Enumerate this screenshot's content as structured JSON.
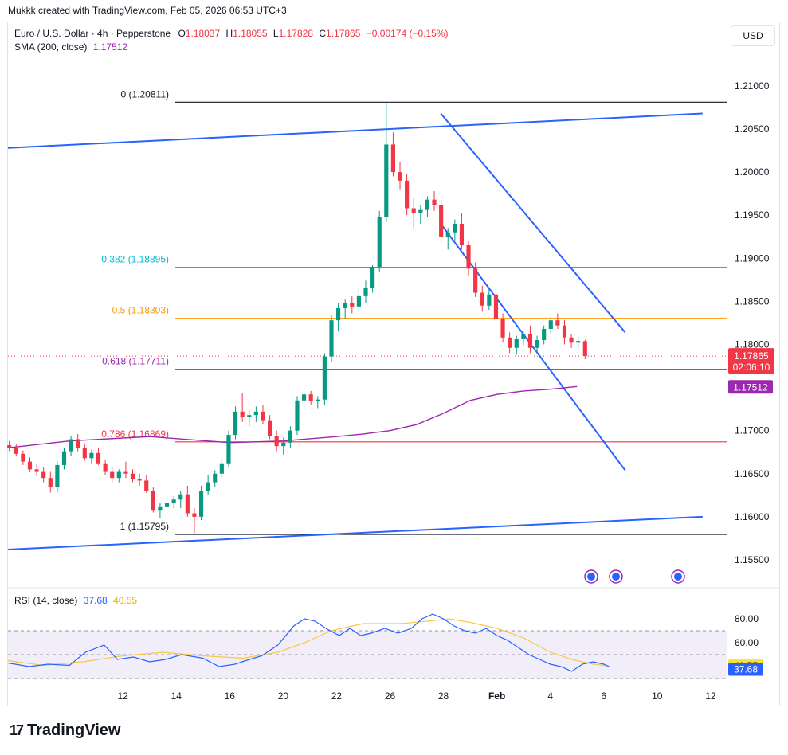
{
  "credit": "Mukkk created with TradingView.com, Feb 05, 2026 06:53 UTC+3",
  "legend": {
    "symbol": "Euro / U.S. Dollar · 4h · Pepperstone",
    "o_label": "O",
    "o": "1.18037",
    "h_label": "H",
    "h": "1.18055",
    "l_label": "L",
    "l": "1.17828",
    "c_label": "C",
    "c": "1.17865",
    "change": "−0.00174 (−0.15%)",
    "sma_label": "SMA (200, close)",
    "sma_value": "1.17512"
  },
  "currency_button": "USD",
  "rsi_legend": {
    "label": "RSI (14, close)",
    "v1": "37.68",
    "v2": "40.55"
  },
  "brand": {
    "logo": "17",
    "name": "TradingView"
  },
  "colors": {
    "up": "#089981",
    "down": "#f23645",
    "channel": "#2962ff",
    "sma": "#9c27b0",
    "rsi": "#2962ff",
    "rsi_ma": "#f7c948"
  },
  "chart_data": {
    "type": "candlestick",
    "price_axis": {
      "ticks": [
        1.21,
        1.205,
        1.2,
        1.195,
        1.19,
        1.185,
        1.18,
        1.175,
        1.17,
        1.165,
        1.16,
        1.155
      ],
      "tick_labels": [
        "1.21000",
        "1.20500",
        "1.20000",
        "1.19500",
        "1.19000",
        "1.18500",
        "1.18000",
        "1.17500",
        "1.17000",
        "1.16500",
        "1.16000",
        "1.15500"
      ],
      "range": [
        1.1525,
        1.2135
      ]
    },
    "x_axis": {
      "labels": [
        "12",
        "14",
        "16",
        "20",
        "22",
        "26",
        "28",
        "Feb",
        "4",
        "6",
        "10",
        "12"
      ],
      "label_days": [
        12,
        14,
        16,
        18,
        20,
        22,
        24,
        26,
        28,
        30,
        32,
        34
      ]
    },
    "price_badges": {
      "last": "1.17865",
      "countdown": "02:06:10",
      "sma": "1.17512",
      "last_price": 1.17865,
      "sma_price": 1.17512
    },
    "fibonacci": [
      {
        "label": "0 (1.20811)",
        "price": 1.20811,
        "color": "#131722"
      },
      {
        "label": "0.382 (1.18895)",
        "price": 1.18895,
        "color": "#00bcd4"
      },
      {
        "label": "0.5 (1.18303)",
        "price": 1.18303,
        "color": "#ff9800"
      },
      {
        "label": "0.618 (1.17711)",
        "price": 1.17711,
        "color": "#9c27b0"
      },
      {
        "label": "0.786 (1.16869)",
        "price": 1.16869,
        "color": "#f23645"
      },
      {
        "label": "1 (1.15795)",
        "price": 1.15795,
        "color": "#131722"
      }
    ],
    "channel_lines": [
      {
        "d1": 7.7,
        "p1": 1.2028,
        "d2": 33.7,
        "p2": 1.2068
      },
      {
        "d1": 7.7,
        "p1": 1.1562,
        "d2": 33.7,
        "p2": 1.16
      },
      {
        "d1": 23.9,
        "p1": 1.2068,
        "d2": 30.8,
        "p2": 1.1814
      },
      {
        "d1": 23.9,
        "p1": 1.194,
        "d2": 30.8,
        "p2": 1.1654
      }
    ],
    "sma_series": [
      [
        7.7,
        1.168
      ],
      [
        10,
        1.1688
      ],
      [
        13,
        1.1693
      ],
      [
        16,
        1.1686
      ],
      [
        18,
        1.1688
      ],
      [
        20,
        1.1693
      ],
      [
        21,
        1.1696
      ],
      [
        22,
        1.17
      ],
      [
        23,
        1.1707
      ],
      [
        24,
        1.172
      ],
      [
        25,
        1.1735
      ],
      [
        26,
        1.1742
      ],
      [
        27,
        1.1746
      ],
      [
        28,
        1.1748
      ],
      [
        29,
        1.17512
      ]
    ],
    "candles": [
      [
        1.1683,
        1.1688,
        1.1676,
        1.168
      ],
      [
        1.168,
        1.1684,
        1.167,
        1.1673
      ],
      [
        1.1673,
        1.1677,
        1.166,
        1.1664
      ],
      [
        1.1664,
        1.1669,
        1.1652,
        1.1655
      ],
      [
        1.1655,
        1.1662,
        1.1648,
        1.1652
      ],
      [
        1.1652,
        1.1657,
        1.164,
        1.1645
      ],
      [
        1.1645,
        1.1652,
        1.1628,
        1.1634
      ],
      [
        1.1634,
        1.1664,
        1.1628,
        1.166
      ],
      [
        1.166,
        1.168,
        1.1655,
        1.1676
      ],
      [
        1.1676,
        1.1694,
        1.167,
        1.169
      ],
      [
        1.169,
        1.1696,
        1.1676,
        1.168
      ],
      [
        1.168,
        1.1684,
        1.1665,
        1.1668
      ],
      [
        1.1668,
        1.1678,
        1.1662,
        1.1674
      ],
      [
        1.1674,
        1.168,
        1.166,
        1.1662
      ],
      [
        1.1662,
        1.1666,
        1.1648,
        1.1652
      ],
      [
        1.1652,
        1.1658,
        1.164,
        1.1645
      ],
      [
        1.1645,
        1.1655,
        1.164,
        1.1652
      ],
      [
        1.1652,
        1.1664,
        1.1645,
        1.165
      ],
      [
        1.165,
        1.1655,
        1.164,
        1.1644
      ],
      [
        1.1644,
        1.165,
        1.1636,
        1.1642
      ],
      [
        1.1642,
        1.1648,
        1.1628,
        1.163
      ],
      [
        1.163,
        1.1634,
        1.1605,
        1.1608
      ],
      [
        1.1608,
        1.1616,
        1.1598,
        1.1612
      ],
      [
        1.1612,
        1.162,
        1.1605,
        1.1616
      ],
      [
        1.1616,
        1.1624,
        1.161,
        1.162
      ],
      [
        1.162,
        1.163,
        1.161,
        1.1626
      ],
      [
        1.1626,
        1.1636,
        1.16,
        1.1604
      ],
      [
        1.1604,
        1.161,
        1.158,
        1.16
      ],
      [
        1.16,
        1.1636,
        1.1596,
        1.163
      ],
      [
        1.163,
        1.1648,
        1.1625,
        1.164
      ],
      [
        1.164,
        1.1654,
        1.1635,
        1.165
      ],
      [
        1.165,
        1.1668,
        1.1645,
        1.1662
      ],
      [
        1.1662,
        1.17,
        1.1658,
        1.1695
      ],
      [
        1.1695,
        1.1728,
        1.169,
        1.1722
      ],
      [
        1.1722,
        1.1744,
        1.171,
        1.1716
      ],
      [
        1.1716,
        1.1724,
        1.1705,
        1.1718
      ],
      [
        1.1718,
        1.1728,
        1.171,
        1.1722
      ],
      [
        1.1722,
        1.173,
        1.1708,
        1.1712
      ],
      [
        1.1712,
        1.1718,
        1.169,
        1.1694
      ],
      [
        1.1694,
        1.17,
        1.1676,
        1.1682
      ],
      [
        1.1682,
        1.1692,
        1.1672,
        1.1686
      ],
      [
        1.1686,
        1.1705,
        1.168,
        1.17
      ],
      [
        1.17,
        1.174,
        1.1695,
        1.1735
      ],
      [
        1.1735,
        1.1746,
        1.1726,
        1.1742
      ],
      [
        1.1742,
        1.1746,
        1.173,
        1.1734
      ],
      [
        1.1734,
        1.174,
        1.1726,
        1.1736
      ],
      [
        1.1736,
        1.179,
        1.173,
        1.1786
      ],
      [
        1.1786,
        1.1834,
        1.178,
        1.1828
      ],
      [
        1.1828,
        1.1848,
        1.1815,
        1.1842
      ],
      [
        1.1842,
        1.1852,
        1.183,
        1.1848
      ],
      [
        1.1848,
        1.1856,
        1.1836,
        1.1844
      ],
      [
        1.1844,
        1.1866,
        1.1838,
        1.1856
      ],
      [
        1.1856,
        1.1874,
        1.1848,
        1.1866
      ],
      [
        1.1866,
        1.1892,
        1.186,
        1.189
      ],
      [
        1.189,
        1.1955,
        1.1884,
        1.1948
      ],
      [
        1.1948,
        1.2081,
        1.1942,
        1.2032
      ],
      [
        1.2032,
        1.2046,
        1.1995,
        1.2
      ],
      [
        1.2,
        1.2012,
        1.198,
        1.199
      ],
      [
        1.199,
        1.1998,
        1.195,
        1.1958
      ],
      [
        1.1958,
        1.197,
        1.1935,
        1.1952
      ],
      [
        1.1952,
        1.1962,
        1.194,
        1.1956
      ],
      [
        1.1956,
        1.1972,
        1.1948,
        1.1968
      ],
      [
        1.1968,
        1.1978,
        1.1955,
        1.1962
      ],
      [
        1.1962,
        1.1968,
        1.1918,
        1.1925
      ],
      [
        1.1925,
        1.1935,
        1.191,
        1.193
      ],
      [
        1.193,
        1.1945,
        1.192,
        1.194
      ],
      [
        1.194,
        1.1952,
        1.191,
        1.1915
      ],
      [
        1.1915,
        1.192,
        1.188,
        1.1888
      ],
      [
        1.1888,
        1.1895,
        1.1855,
        1.186
      ],
      [
        1.186,
        1.1868,
        1.1838,
        1.1845
      ],
      [
        1.1845,
        1.1864,
        1.184,
        1.1858
      ],
      [
        1.1858,
        1.1866,
        1.1825,
        1.183
      ],
      [
        1.183,
        1.1836,
        1.1802,
        1.1808
      ],
      [
        1.1808,
        1.1814,
        1.179,
        1.1796
      ],
      [
        1.1796,
        1.181,
        1.1788,
        1.1806
      ],
      [
        1.1806,
        1.1816,
        1.1798,
        1.1812
      ],
      [
        1.1812,
        1.1822,
        1.179,
        1.1796
      ],
      [
        1.1796,
        1.181,
        1.179,
        1.1805
      ],
      [
        1.1805,
        1.1822,
        1.18,
        1.1818
      ],
      [
        1.1818,
        1.1832,
        1.1812,
        1.1828
      ],
      [
        1.1828,
        1.1836,
        1.1818,
        1.1822
      ],
      [
        1.1822,
        1.1828,
        1.18,
        1.1808
      ],
      [
        1.1808,
        1.1812,
        1.1796,
        1.1802
      ],
      [
        1.1802,
        1.181,
        1.1795,
        1.1804
      ],
      [
        1.18037,
        1.18055,
        1.17828,
        1.17865
      ]
    ],
    "rsi": {
      "ticks": [
        80,
        60
      ],
      "tick_labels": [
        "80.00",
        "60.00"
      ],
      "badges": {
        "rsi": "37.68",
        "rsi_ma": "40.55",
        "rsi_value": 37.68,
        "rsi_ma_value": 40.55
      },
      "rsi_series": [
        [
          7.7,
          43
        ],
        [
          8.5,
          40
        ],
        [
          9.2,
          42
        ],
        [
          10,
          41
        ],
        [
          10.6,
          52
        ],
        [
          11.3,
          58
        ],
        [
          11.8,
          46
        ],
        [
          12.4,
          48
        ],
        [
          13,
          44
        ],
        [
          13.6,
          46
        ],
        [
          14.2,
          50
        ],
        [
          15,
          47
        ],
        [
          15.6,
          40
        ],
        [
          16.2,
          42
        ],
        [
          16.6,
          45
        ],
        [
          17.2,
          49
        ],
        [
          17.8,
          58
        ],
        [
          18.4,
          74
        ],
        [
          18.8,
          80
        ],
        [
          19.2,
          78
        ],
        [
          19.6,
          72
        ],
        [
          20.1,
          66
        ],
        [
          20.5,
          72
        ],
        [
          20.9,
          66
        ],
        [
          21.3,
          68
        ],
        [
          21.8,
          72
        ],
        [
          22.3,
          68
        ],
        [
          22.8,
          72
        ],
        [
          23.2,
          80
        ],
        [
          23.6,
          84
        ],
        [
          24,
          80
        ],
        [
          24.4,
          74
        ],
        [
          24.8,
          70
        ],
        [
          25.2,
          68
        ],
        [
          25.6,
          72
        ],
        [
          26,
          66
        ],
        [
          26.4,
          62
        ],
        [
          26.8,
          56
        ],
        [
          27.2,
          50
        ],
        [
          27.6,
          46
        ],
        [
          28,
          42
        ],
        [
          28.4,
          40
        ],
        [
          28.8,
          36
        ],
        [
          29.2,
          42
        ],
        [
          29.6,
          44
        ],
        [
          30,
          42
        ],
        [
          30.2,
          40
        ]
      ],
      "rsi_ma_series": [
        [
          7.7,
          45
        ],
        [
          9,
          41
        ],
        [
          10.5,
          44
        ],
        [
          12,
          49
        ],
        [
          13.5,
          52
        ],
        [
          15,
          49
        ],
        [
          16.5,
          47
        ],
        [
          17.8,
          52
        ],
        [
          18.8,
          60
        ],
        [
          19.8,
          70
        ],
        [
          21,
          76
        ],
        [
          22.4,
          76
        ],
        [
          23.4,
          78
        ],
        [
          24.2,
          80
        ],
        [
          25,
          77
        ],
        [
          26,
          72
        ],
        [
          27,
          64
        ],
        [
          28,
          52
        ],
        [
          28.8,
          46
        ],
        [
          29.6,
          42
        ],
        [
          30.2,
          40.5
        ]
      ]
    }
  }
}
